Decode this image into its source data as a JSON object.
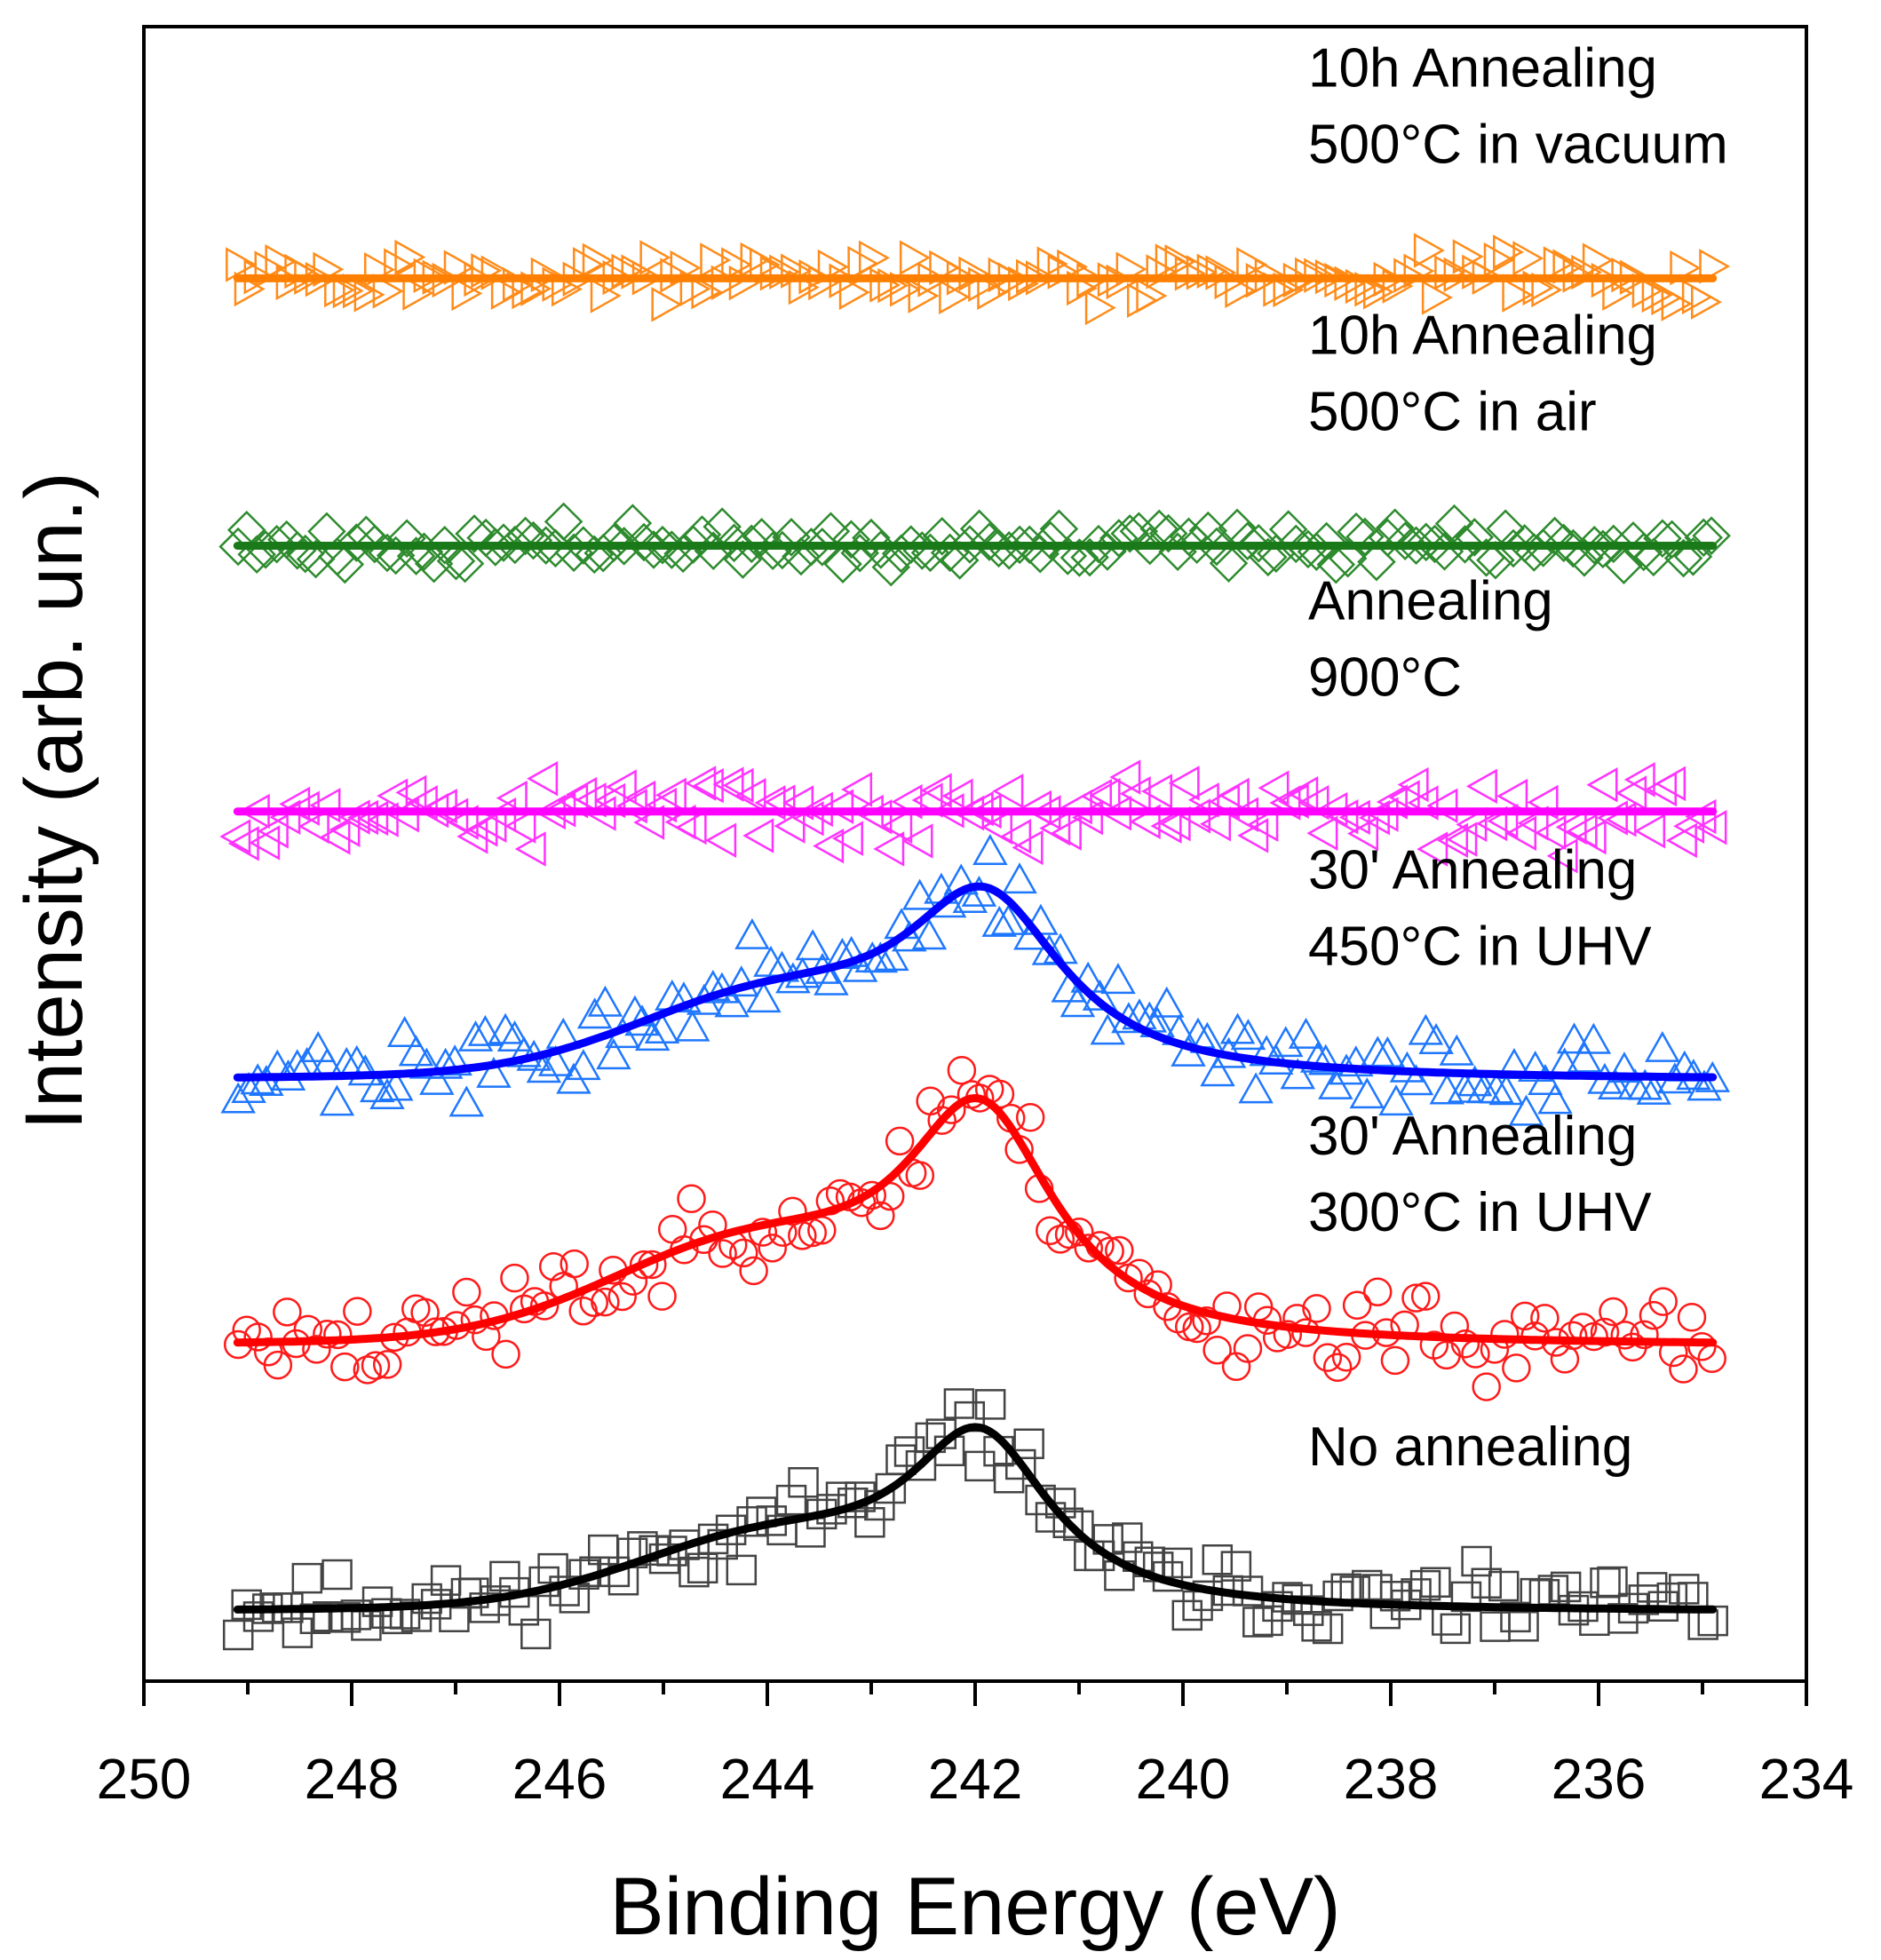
{
  "chart_data": {
    "type": "scatter",
    "title": "",
    "xlabel": "Binding Energy (eV)",
    "ylabel": "Intensity (arb. un.)",
    "xlim": [
      250,
      234
    ],
    "x_reversed": true,
    "x_ticks": [
      250,
      248,
      246,
      244,
      242,
      240,
      238,
      236,
      234
    ],
    "x_tick_labels": [
      "250",
      "248",
      "246",
      "244",
      "242",
      "240",
      "238",
      "236",
      "234"
    ],
    "y_ticks_shown": false,
    "grid": false,
    "legend": "none (inline annotations right of each curve)",
    "x_range_data": [
      249.1,
      234.9
    ],
    "series": [
      {
        "name": "No annealing",
        "annotation_lines": [
          "No annealing"
        ],
        "marker": "square",
        "color": "#000000",
        "marker_color": "#444444",
        "baseline": 0.0,
        "fit": {
          "peak_center": 241.95,
          "amplitude": 1.0,
          "width": 0.85,
          "shoulder_center": 244.0,
          "shoulder_amplitude": 0.38,
          "shoulder_width": 1.3
        },
        "noise": 0.12,
        "seed": 11
      },
      {
        "name": "30' Annealing 300°C in UHV",
        "annotation_lines": [
          "30' Annealing",
          "300°C in UHV"
        ],
        "marker": "circle",
        "color": "#ff0000",
        "marker_color": "#ff1a1a",
        "baseline": 1.6,
        "fit": {
          "peak_center": 241.95,
          "amplitude": 1.36,
          "width": 0.9,
          "shoulder_center": 244.2,
          "shoulder_amplitude": 0.52,
          "shoulder_width": 1.35
        },
        "noise": 0.16,
        "seed": 23
      },
      {
        "name": "30' Annealing 450°C in UHV",
        "annotation_lines": [
          "30' Annealing",
          "450°C in UHV"
        ],
        "marker": "triangle-up",
        "color": "#0000ff",
        "marker_color": "#1f77ff",
        "baseline": 3.2,
        "fit": {
          "peak_center": 241.9,
          "amplitude": 1.05,
          "width": 0.95,
          "shoulder_center": 244.0,
          "shoulder_amplitude": 0.42,
          "shoulder_width": 1.3
        },
        "noise": 0.13,
        "seed": 37
      },
      {
        "name": "Annealing 900°C",
        "annotation_lines": [
          "Annealing",
          "900°C"
        ],
        "marker": "triangle-left",
        "color": "#ff00ff",
        "marker_color": "#ff33ff",
        "baseline": 4.82,
        "fit": {
          "peak_center": 242,
          "amplitude": 0.0,
          "width": 1,
          "shoulder_center": 244,
          "shoulder_amplitude": 0.0,
          "shoulder_width": 1
        },
        "noise": 0.14,
        "seed": 53
      },
      {
        "name": "10h Annealing 500°C in air",
        "annotation_lines": [
          "10h Annealing",
          "500°C in air"
        ],
        "marker": "diamond",
        "color": "#1a7a1a",
        "marker_color": "#2e8b2e",
        "baseline": 6.42,
        "fit": {
          "peak_center": 242,
          "amplitude": 0.0,
          "width": 1,
          "shoulder_center": 244,
          "shoulder_amplitude": 0.0,
          "shoulder_width": 1
        },
        "noise": 0.07,
        "seed": 71
      },
      {
        "name": "10h Annealing 500°C in vacuum",
        "annotation_lines": [
          "10h Annealing",
          "500°C in vacuum"
        ],
        "marker": "triangle-right",
        "color": "#ff8000",
        "marker_color": "#ff8c1a",
        "baseline": 8.03,
        "fit": {
          "peak_center": 242,
          "amplitude": 0.0,
          "width": 1,
          "shoulder_center": 244,
          "shoulder_amplitude": 0.0,
          "shoulder_width": 1
        },
        "noise": 0.09,
        "seed": 89
      }
    ]
  }
}
